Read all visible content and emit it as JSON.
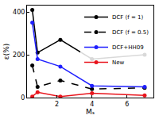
{
  "chart_data": {
    "type": "line",
    "x_label": "Mₛ",
    "y_label": "ε(%)",
    "x": [
      0.6,
      0.9,
      2.2,
      4,
      7
    ],
    "series": [
      {
        "name": "DCF (f = 1)",
        "color": "#000000",
        "marker": "circle",
        "line_style": "solid",
        "values": [
          410,
          210,
          270,
          180,
          200
        ]
      },
      {
        "name": "DCF (f = 0.5)",
        "color": "#000000",
        "marker": "circle",
        "line_style": "dashed",
        "values": [
          150,
          50,
          80,
          40,
          45
        ]
      },
      {
        "name": "DCF+HH09",
        "color": "#1f1fff",
        "marker": "circle",
        "line_style": "solid",
        "values": [
          350,
          180,
          145,
          55,
          50
        ]
      },
      {
        "name": "New",
        "color": "#e8141c",
        "marker": "circle",
        "line_style": "solid",
        "values": [
          5,
          25,
          5,
          20,
          10
        ]
      }
    ],
    "xlim": [
      0.3,
      7.5
    ],
    "ylim": [
      0,
      430
    ],
    "xticks": [
      2,
      4,
      6
    ],
    "yticks": [
      0,
      200,
      400
    ],
    "grid": false,
    "legend": "upper right"
  }
}
